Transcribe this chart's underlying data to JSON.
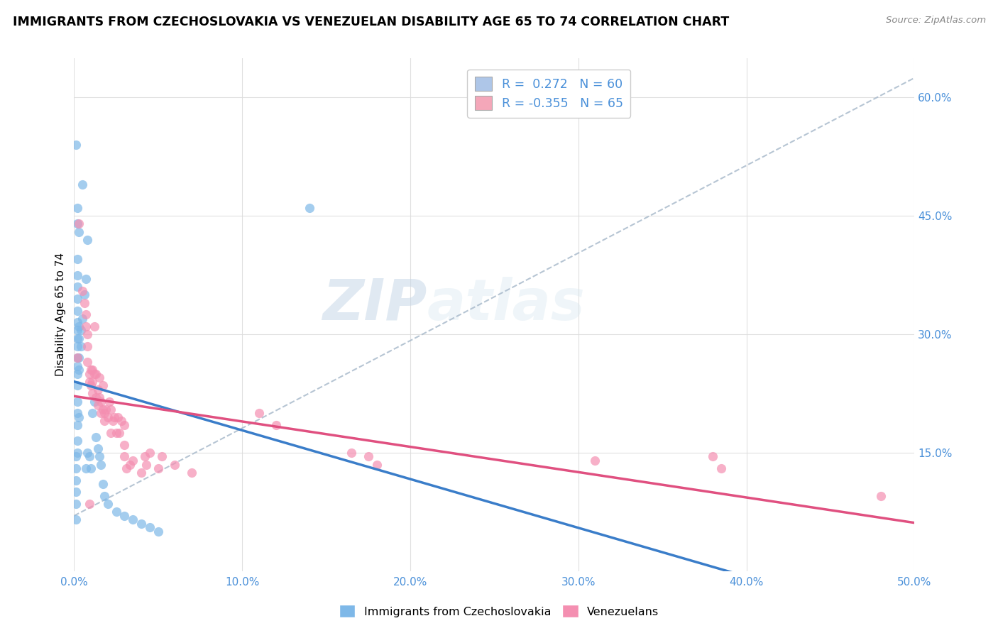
{
  "title": "IMMIGRANTS FROM CZECHOSLOVAKIA VS VENEZUELAN DISABILITY AGE 65 TO 74 CORRELATION CHART",
  "source": "Source: ZipAtlas.com",
  "ylabel": "Disability Age 65 to 74",
  "xlim": [
    0.0,
    0.5
  ],
  "ylim": [
    0.0,
    0.65
  ],
  "xtick_labels": [
    "0.0%",
    "10.0%",
    "20.0%",
    "30.0%",
    "40.0%",
    "50.0%"
  ],
  "xtick_vals": [
    0.0,
    0.1,
    0.2,
    0.3,
    0.4,
    0.5
  ],
  "ytick_labels": [
    "15.0%",
    "30.0%",
    "45.0%",
    "60.0%"
  ],
  "ytick_vals": [
    0.15,
    0.3,
    0.45,
    0.6
  ],
  "legend_label_blue": "R =  0.272   N = 60",
  "legend_label_pink": "R = -0.355   N = 65",
  "legend_color_blue": "#aec6e8",
  "legend_color_pink": "#f4a7b9",
  "blue_color": "#7eb8e8",
  "pink_color": "#f48fb1",
  "trend_blue_color": "#3a7dc9",
  "trend_pink_color": "#e05080",
  "trend_dash_color": "#aabbcc",
  "watermark_zip": "ZIP",
  "watermark_atlas": "atlas",
  "bottom_legend_blue": "Immigrants from Czechoslovakia",
  "bottom_legend_pink": "Venezuelans",
  "blue_scatter": [
    [
      0.001,
      0.54
    ],
    [
      0.005,
      0.49
    ],
    [
      0.007,
      0.37
    ],
    [
      0.008,
      0.42
    ],
    [
      0.003,
      0.43
    ],
    [
      0.002,
      0.395
    ],
    [
      0.002,
      0.375
    ],
    [
      0.002,
      0.36
    ],
    [
      0.002,
      0.345
    ],
    [
      0.002,
      0.33
    ],
    [
      0.002,
      0.315
    ],
    [
      0.002,
      0.305
    ],
    [
      0.002,
      0.295
    ],
    [
      0.002,
      0.285
    ],
    [
      0.002,
      0.27
    ],
    [
      0.002,
      0.26
    ],
    [
      0.002,
      0.25
    ],
    [
      0.002,
      0.235
    ],
    [
      0.002,
      0.215
    ],
    [
      0.002,
      0.2
    ],
    [
      0.002,
      0.185
    ],
    [
      0.002,
      0.165
    ],
    [
      0.002,
      0.15
    ],
    [
      0.001,
      0.145
    ],
    [
      0.001,
      0.13
    ],
    [
      0.001,
      0.115
    ],
    [
      0.001,
      0.1
    ],
    [
      0.001,
      0.085
    ],
    [
      0.001,
      0.065
    ],
    [
      0.003,
      0.31
    ],
    [
      0.003,
      0.295
    ],
    [
      0.003,
      0.27
    ],
    [
      0.003,
      0.255
    ],
    [
      0.003,
      0.195
    ],
    [
      0.004,
      0.305
    ],
    [
      0.004,
      0.285
    ],
    [
      0.005,
      0.32
    ],
    [
      0.006,
      0.35
    ],
    [
      0.007,
      0.13
    ],
    [
      0.008,
      0.15
    ],
    [
      0.009,
      0.145
    ],
    [
      0.01,
      0.13
    ],
    [
      0.011,
      0.2
    ],
    [
      0.012,
      0.215
    ],
    [
      0.013,
      0.17
    ],
    [
      0.014,
      0.155
    ],
    [
      0.015,
      0.145
    ],
    [
      0.016,
      0.135
    ],
    [
      0.017,
      0.11
    ],
    [
      0.018,
      0.095
    ],
    [
      0.02,
      0.085
    ],
    [
      0.025,
      0.075
    ],
    [
      0.03,
      0.07
    ],
    [
      0.035,
      0.065
    ],
    [
      0.04,
      0.06
    ],
    [
      0.045,
      0.055
    ],
    [
      0.05,
      0.05
    ],
    [
      0.14,
      0.46
    ],
    [
      0.002,
      0.44
    ],
    [
      0.002,
      0.46
    ]
  ],
  "pink_scatter": [
    [
      0.002,
      0.27
    ],
    [
      0.003,
      0.44
    ],
    [
      0.005,
      0.355
    ],
    [
      0.006,
      0.34
    ],
    [
      0.007,
      0.325
    ],
    [
      0.007,
      0.31
    ],
    [
      0.008,
      0.3
    ],
    [
      0.008,
      0.285
    ],
    [
      0.008,
      0.265
    ],
    [
      0.009,
      0.25
    ],
    [
      0.009,
      0.24
    ],
    [
      0.01,
      0.255
    ],
    [
      0.01,
      0.235
    ],
    [
      0.011,
      0.255
    ],
    [
      0.011,
      0.24
    ],
    [
      0.011,
      0.225
    ],
    [
      0.012,
      0.31
    ],
    [
      0.012,
      0.25
    ],
    [
      0.013,
      0.25
    ],
    [
      0.013,
      0.22
    ],
    [
      0.014,
      0.23
    ],
    [
      0.014,
      0.21
    ],
    [
      0.015,
      0.245
    ],
    [
      0.015,
      0.22
    ],
    [
      0.016,
      0.215
    ],
    [
      0.016,
      0.2
    ],
    [
      0.017,
      0.235
    ],
    [
      0.017,
      0.205
    ],
    [
      0.018,
      0.2
    ],
    [
      0.018,
      0.19
    ],
    [
      0.019,
      0.205
    ],
    [
      0.02,
      0.195
    ],
    [
      0.021,
      0.215
    ],
    [
      0.022,
      0.205
    ],
    [
      0.022,
      0.175
    ],
    [
      0.023,
      0.19
    ],
    [
      0.024,
      0.195
    ],
    [
      0.025,
      0.175
    ],
    [
      0.026,
      0.195
    ],
    [
      0.027,
      0.175
    ],
    [
      0.028,
      0.19
    ],
    [
      0.03,
      0.185
    ],
    [
      0.03,
      0.16
    ],
    [
      0.03,
      0.145
    ],
    [
      0.031,
      0.13
    ],
    [
      0.033,
      0.135
    ],
    [
      0.035,
      0.14
    ],
    [
      0.04,
      0.125
    ],
    [
      0.042,
      0.145
    ],
    [
      0.043,
      0.135
    ],
    [
      0.045,
      0.15
    ],
    [
      0.05,
      0.13
    ],
    [
      0.052,
      0.145
    ],
    [
      0.06,
      0.135
    ],
    [
      0.07,
      0.125
    ],
    [
      0.11,
      0.2
    ],
    [
      0.12,
      0.185
    ],
    [
      0.165,
      0.15
    ],
    [
      0.175,
      0.145
    ],
    [
      0.18,
      0.135
    ],
    [
      0.31,
      0.14
    ],
    [
      0.38,
      0.145
    ],
    [
      0.385,
      0.13
    ],
    [
      0.48,
      0.095
    ],
    [
      0.009,
      0.085
    ]
  ]
}
